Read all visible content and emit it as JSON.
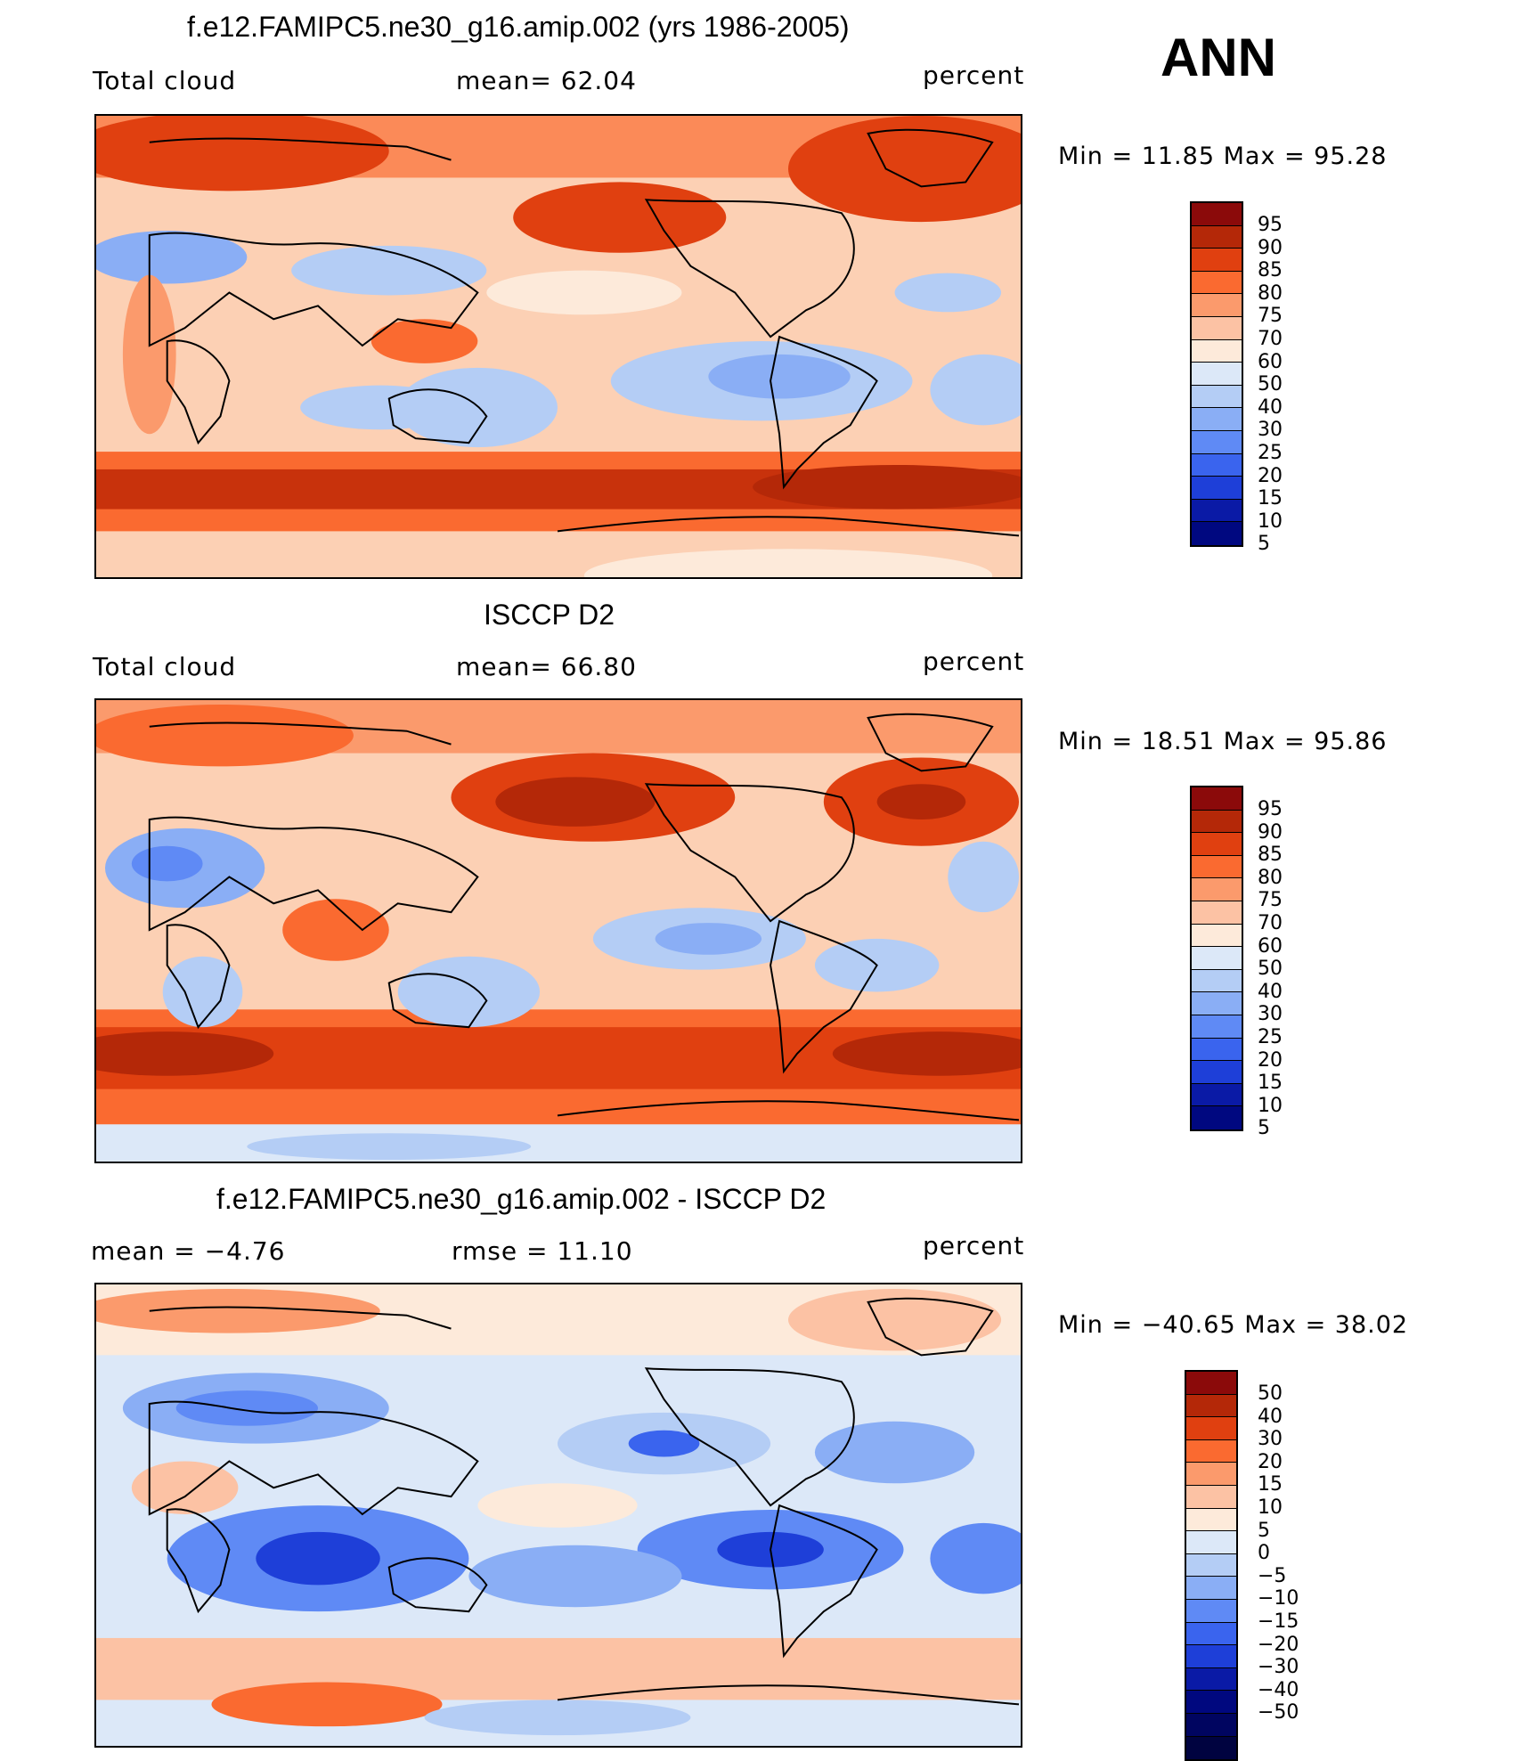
{
  "season": "ANN",
  "panels": [
    {
      "title": "f.e12.FAMIPC5.ne30_g16.amip.002 (yrs 1986-2005)",
      "left_label": "Total cloud",
      "center_label": "mean=   62.04",
      "units": "percent",
      "minmax": "Min =   11.85  Max =   95.28",
      "colorbar": {
        "colors": [
          "#8b0a0a",
          "#b42808",
          "#e04010",
          "#fa6a30",
          "#fb9a6c",
          "#fcc2a4",
          "#fdeada",
          "#dce8f8",
          "#b4cdf5",
          "#8aaef5",
          "#5f8af5",
          "#3a64ee",
          "#1e3fd8",
          "#0a1aa6",
          "#000880"
        ],
        "labels": [
          "95",
          "90",
          "85",
          "80",
          "75",
          "70",
          "60",
          "50",
          "40",
          "30",
          "25",
          "20",
          "15",
          "10",
          "5"
        ]
      }
    },
    {
      "title": "ISCCP D2",
      "left_label": "Total cloud",
      "center_label": "mean=   66.80",
      "units": "percent",
      "minmax": "Min =   18.51  Max =   95.86",
      "colorbar": {
        "colors": [
          "#8b0a0a",
          "#b42808",
          "#e04010",
          "#fa6a30",
          "#fb9a6c",
          "#fcc2a4",
          "#fdeada",
          "#dce8f8",
          "#b4cdf5",
          "#8aaef5",
          "#5f8af5",
          "#3a64ee",
          "#1e3fd8",
          "#0a1aa6",
          "#000880"
        ],
        "labels": [
          "95",
          "90",
          "85",
          "80",
          "75",
          "70",
          "60",
          "50",
          "40",
          "30",
          "25",
          "20",
          "15",
          "10",
          "5"
        ]
      }
    },
    {
      "title": "f.e12.FAMIPC5.ne30_g16.amip.002 - ISCCP D2",
      "left_label": "mean =    −4.76",
      "center_label": "rmse =    11.10",
      "units": "percent",
      "minmax": "Min = −40.65  Max =   38.02",
      "colorbar": {
        "colors": [
          "#8b0a0a",
          "#b42808",
          "#e04010",
          "#fa6a30",
          "#fb9a6c",
          "#fcc2a4",
          "#fdeada",
          "#dce8f8",
          "#b4cdf5",
          "#8aaef5",
          "#5f8af5",
          "#3a64ee",
          "#1e3fd8",
          "#0a1aa6",
          "#00087f",
          "#000560",
          "#000340"
        ],
        "labels": [
          "50",
          "40",
          "30",
          "20",
          "15",
          "10",
          "5",
          "0",
          "−5",
          "−10",
          "−15",
          "−20",
          "−30",
          "−40",
          "−50"
        ]
      }
    }
  ]
}
